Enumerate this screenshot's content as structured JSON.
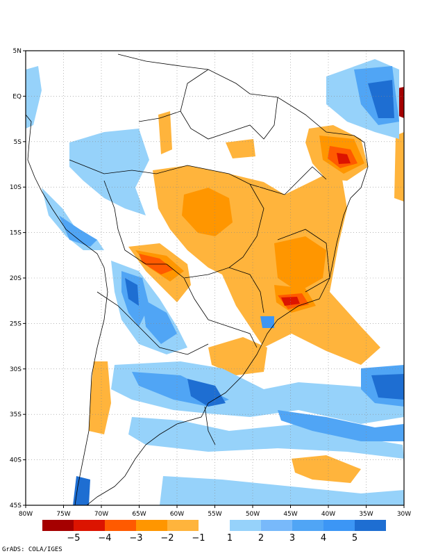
{
  "map": {
    "lon_range": [
      -80,
      -30
    ],
    "lat_range": [
      -45,
      5
    ],
    "grid": "dotted",
    "x_ticks": [
      "80W",
      "75W",
      "70W",
      "65W",
      "60W",
      "55W",
      "50W",
      "45W",
      "40W",
      "35W",
      "30W"
    ],
    "y_ticks": [
      "5N",
      "EQ",
      "5S",
      "10S",
      "15S",
      "20S",
      "25S",
      "30S",
      "35S",
      "40S",
      "45S"
    ]
  },
  "colorbar": {
    "negative_colors": [
      "#a50000",
      "#dc1400",
      "#ff5a00",
      "#ff9600",
      "#ffb43c"
    ],
    "positive_colors": [
      "#96d2fa",
      "#78b9fa",
      "#50a5f5",
      "#3c96f5",
      "#1e6ed2"
    ],
    "labels": [
      "−5",
      "−4",
      "−3",
      "−2",
      "−1",
      "1",
      "2",
      "3",
      "4",
      "5"
    ]
  },
  "credit": "GrADS: COLA/IGES"
}
